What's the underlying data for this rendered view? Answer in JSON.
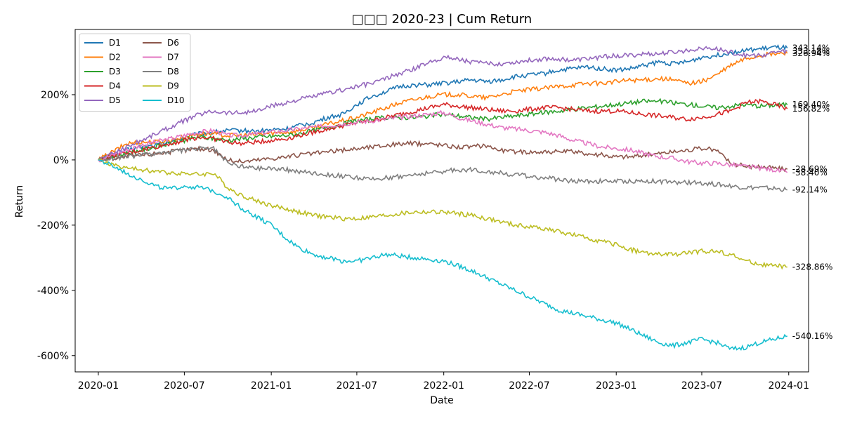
{
  "chart_data": {
    "type": "line",
    "title": "□□□ 2020-23 | Cum Return",
    "xlabel": "Date",
    "ylabel": "Return",
    "x_ticks": [
      "2020-01",
      "2020-07",
      "2021-01",
      "2021-07",
      "2022-01",
      "2022-07",
      "2023-01",
      "2023-07",
      "2024-01"
    ],
    "y_ticks": [
      "-600%",
      "-400%",
      "-200%",
      "0%",
      "200%"
    ],
    "ylim": [
      -650,
      400
    ],
    "xlim": [
      "2019-11-13",
      "2024-02-12"
    ],
    "grid": false,
    "legend_position": "top-left",
    "legend_columns": 2,
    "x": [
      "2020-01-01",
      "2020-02-01",
      "2020-03-01",
      "2020-04-01",
      "2020-05-01",
      "2020-06-01",
      "2020-07-01",
      "2020-08-01",
      "2020-09-01",
      "2020-10-01",
      "2020-11-01",
      "2020-12-01",
      "2021-01-01",
      "2021-02-01",
      "2021-03-01",
      "2021-04-01",
      "2021-05-01",
      "2021-06-01",
      "2021-07-01",
      "2021-08-01",
      "2021-09-01",
      "2021-10-01",
      "2021-11-01",
      "2021-12-01",
      "2022-01-01",
      "2022-02-01",
      "2022-03-01",
      "2022-04-01",
      "2022-05-01",
      "2022-06-01",
      "2022-07-01",
      "2022-08-01",
      "2022-09-01",
      "2022-10-01",
      "2022-11-01",
      "2022-12-01",
      "2023-01-01",
      "2023-02-01",
      "2023-03-01",
      "2023-04-01",
      "2023-05-01",
      "2023-06-01",
      "2023-07-01",
      "2023-08-01",
      "2023-09-01",
      "2023-10-01",
      "2023-11-01",
      "2023-12-01",
      "2023-12-29"
    ],
    "series": [
      {
        "name": "D1",
        "color": "#1f77b4",
        "end_label": "343.14%",
        "values": [
          0,
          15,
          30,
          40,
          45,
          55,
          70,
          80,
          85,
          90,
          90,
          88,
          92,
          95,
          105,
          115,
          130,
          140,
          170,
          195,
          210,
          225,
          230,
          230,
          235,
          240,
          245,
          240,
          245,
          255,
          260,
          265,
          275,
          280,
          285,
          280,
          275,
          280,
          290,
          300,
          295,
          300,
          315,
          320,
          330,
          335,
          340,
          345,
          343.14
        ]
      },
      {
        "name": "D2",
        "color": "#ff7f0e",
        "end_label": "326.94%",
        "values": [
          0,
          25,
          50,
          55,
          55,
          60,
          70,
          80,
          80,
          75,
          75,
          78,
          82,
          85,
          90,
          100,
          110,
          120,
          130,
          145,
          160,
          175,
          185,
          195,
          200,
          200,
          195,
          190,
          200,
          210,
          215,
          220,
          225,
          230,
          235,
          235,
          240,
          245,
          245,
          250,
          245,
          235,
          240,
          260,
          290,
          310,
          320,
          325,
          326.94
        ]
      },
      {
        "name": "D3",
        "color": "#2ca02c",
        "end_label": "169.40%",
        "values": [
          0,
          10,
          20,
          30,
          40,
          50,
          60,
          70,
          65,
          60,
          65,
          70,
          72,
          75,
          80,
          90,
          100,
          110,
          120,
          125,
          130,
          130,
          130,
          135,
          140,
          135,
          130,
          125,
          130,
          135,
          140,
          145,
          150,
          155,
          160,
          165,
          170,
          175,
          180,
          180,
          175,
          170,
          165,
          160,
          165,
          170,
          165,
          168,
          169.4
        ]
      },
      {
        "name": "D4",
        "color": "#d62728",
        "end_label": "156.82%",
        "values": [
          0,
          10,
          20,
          30,
          40,
          50,
          60,
          70,
          65,
          55,
          50,
          55,
          60,
          65,
          75,
          85,
          95,
          105,
          115,
          120,
          130,
          140,
          150,
          160,
          170,
          165,
          160,
          155,
          150,
          150,
          155,
          160,
          160,
          155,
          150,
          150,
          150,
          145,
          140,
          135,
          130,
          125,
          130,
          140,
          150,
          175,
          180,
          170,
          156.82
        ]
      },
      {
        "name": "D5",
        "color": "#9467bd",
        "end_label": "333.18%",
        "values": [
          0,
          20,
          40,
          60,
          80,
          100,
          120,
          140,
          150,
          145,
          145,
          150,
          165,
          175,
          185,
          195,
          205,
          215,
          225,
          235,
          250,
          265,
          280,
          300,
          315,
          310,
          300,
          295,
          295,
          300,
          305,
          310,
          310,
          305,
          310,
          315,
          320,
          320,
          325,
          325,
          330,
          335,
          345,
          340,
          330,
          320,
          320,
          330,
          333.18
        ]
      },
      {
        "name": "D6",
        "color": "#8c564b",
        "end_label": "-28.69%",
        "values": [
          0,
          5,
          10,
          15,
          20,
          25,
          30,
          35,
          30,
          0,
          -5,
          0,
          5,
          10,
          15,
          20,
          25,
          30,
          35,
          40,
          45,
          50,
          50,
          50,
          45,
          40,
          40,
          45,
          30,
          25,
          25,
          25,
          25,
          25,
          20,
          15,
          10,
          10,
          15,
          20,
          25,
          30,
          35,
          30,
          -10,
          -20,
          -20,
          -25,
          -28.69
        ]
      },
      {
        "name": "D7",
        "color": "#e377c2",
        "end_label": "-38.40%",
        "values": [
          0,
          15,
          30,
          45,
          55,
          65,
          75,
          85,
          90,
          75,
          75,
          80,
          85,
          90,
          95,
          100,
          105,
          110,
          115,
          120,
          125,
          130,
          135,
          140,
          145,
          130,
          120,
          110,
          100,
          95,
          90,
          85,
          75,
          60,
          50,
          40,
          35,
          30,
          20,
          10,
          5,
          -5,
          -10,
          -10,
          -15,
          -20,
          -25,
          -30,
          -38.4
        ]
      },
      {
        "name": "D8",
        "color": "#7f7f7f",
        "end_label": "-92.14%",
        "values": [
          0,
          5,
          10,
          15,
          20,
          25,
          30,
          35,
          35,
          -10,
          -20,
          -25,
          -25,
          -30,
          -35,
          -40,
          -45,
          -50,
          -55,
          -60,
          -55,
          -50,
          -45,
          -40,
          -35,
          -30,
          -30,
          -35,
          -40,
          -45,
          -50,
          -55,
          -60,
          -65,
          -65,
          -65,
          -65,
          -65,
          -65,
          -65,
          -70,
          -70,
          -70,
          -75,
          -80,
          -85,
          -85,
          -88,
          -92.14
        ]
      },
      {
        "name": "D9",
        "color": "#bcbd22",
        "end_label": "-328.86%",
        "values": [
          0,
          -15,
          -25,
          -30,
          -35,
          -40,
          -40,
          -45,
          -40,
          -85,
          -110,
          -125,
          -140,
          -150,
          -160,
          -170,
          -175,
          -180,
          -180,
          -175,
          -170,
          -165,
          -160,
          -160,
          -160,
          -165,
          -170,
          -180,
          -190,
          -200,
          -205,
          -210,
          -220,
          -230,
          -240,
          -250,
          -260,
          -275,
          -285,
          -290,
          -290,
          -285,
          -280,
          -280,
          -290,
          -310,
          -320,
          -325,
          -328.86
        ]
      },
      {
        "name": "D10",
        "color": "#17becf",
        "end_label": "-540.16%",
        "values": [
          0,
          -20,
          -40,
          -60,
          -80,
          -90,
          -80,
          -85,
          -95,
          -115,
          -150,
          -175,
          -200,
          -240,
          -270,
          -290,
          -300,
          -310,
          -310,
          -300,
          -290,
          -295,
          -300,
          -305,
          -310,
          -325,
          -340,
          -360,
          -380,
          -400,
          -420,
          -440,
          -460,
          -470,
          -480,
          -490,
          -500,
          -520,
          -540,
          -560,
          -570,
          -560,
          -550,
          -560,
          -580,
          -575,
          -560,
          -550,
          -540.16
        ]
      }
    ]
  }
}
